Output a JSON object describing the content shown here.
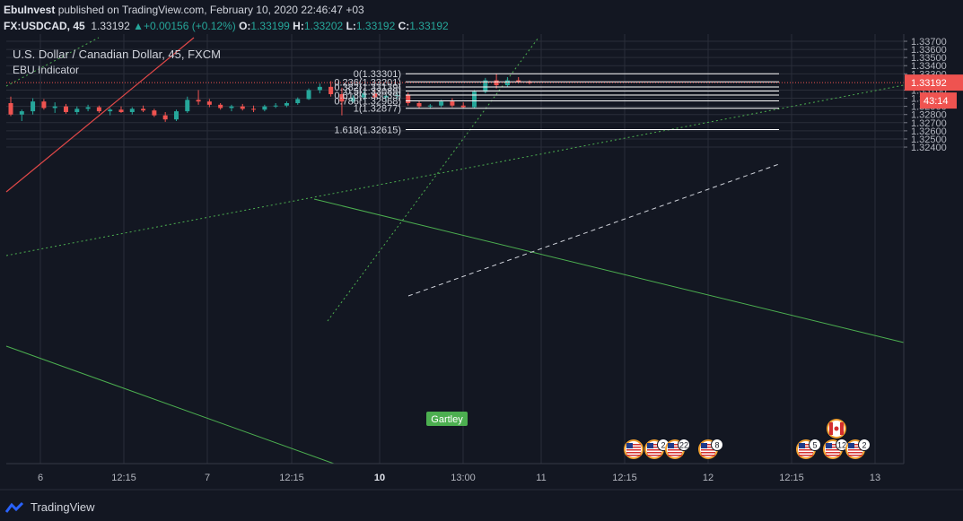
{
  "header": {
    "author": "EbuInvest",
    "published_text": "published on TradingView.com, February 10, 2020 22:46:47 +03",
    "symbol": "FX:USDCAD, 45",
    "price": "1.33192",
    "change": "+0.00156 (+0.12%)",
    "open_label": "O:",
    "open": "1.33199",
    "high_label": "H:",
    "high": "1.33202",
    "low_label": "L:",
    "low": "1.33192",
    "close_label": "C:",
    "close": "1.33192"
  },
  "legend": {
    "title": "U.S. Dollar / Canadian Dollar, 45, FXCM",
    "indicator": "EBU Indicator"
  },
  "price_axis": {
    "ticks": [
      "1.33700",
      "1.33600",
      "1.33500",
      "1.33400",
      "1.33300",
      "1.33100",
      "1.33000",
      "1.32900",
      "1.32800",
      "1.32700",
      "1.32600",
      "1.32500",
      "1.32400"
    ],
    "current_price": "1.33192",
    "countdown": "43:14"
  },
  "time_axis": {
    "ticks": [
      "6",
      "12:15",
      "7",
      "12:15",
      "10",
      "13:00",
      "11",
      "12:15",
      "12",
      "12:15",
      "13"
    ],
    "bold_tick": "10"
  },
  "fib_levels": [
    {
      "label": "0(1.33301)",
      "price": 1.33301
    },
    {
      "label": "0.236(1.33201)",
      "price": 1.33201
    },
    {
      "label": "0.382(1.33139)",
      "price": 1.33139
    },
    {
      "label": "0.5(1.33089)",
      "price": 1.33089
    },
    {
      "label": "0.618(1.33039)",
      "price": 1.33039
    },
    {
      "label": "0.786(1.32968)",
      "price": 1.32968
    },
    {
      "label": "1(1.32877)",
      "price": 1.32877
    },
    {
      "label": "1.618(1.32615)",
      "price": 1.32615
    }
  ],
  "pattern_label": "Gartley",
  "events": [
    {
      "flag": "US",
      "count": ""
    },
    {
      "flag": "US",
      "count": "2"
    },
    {
      "flag": "US",
      "count": "22"
    },
    {
      "flag": "US",
      "count": "8"
    },
    {
      "flag": "US",
      "count": "5"
    },
    {
      "flag": "US",
      "count": "12"
    },
    {
      "flag": "US",
      "count": "2"
    },
    {
      "flag": "CA",
      "count": ""
    }
  ],
  "footer": {
    "brand": "TradingView"
  },
  "colors": {
    "background": "#131722",
    "up": "#26a69a",
    "down": "#ef5350",
    "grid": "#2a2e39",
    "price_line": "#ef5350",
    "trend_green": "#4caf50",
    "trend_red": "#e04848"
  },
  "chart_data": {
    "type": "candlestick",
    "symbol": "USDCAD",
    "timeframe": "45",
    "ylim": [
      1.3232,
      1.3372
    ],
    "candles": [
      [
        1.3294,
        1.3302,
        1.3278,
        1.328
      ],
      [
        1.328,
        1.3286,
        1.3272,
        1.3284
      ],
      [
        1.3284,
        1.33,
        1.328,
        1.3296
      ],
      [
        1.3296,
        1.3299,
        1.3286,
        1.3288
      ],
      [
        1.3288,
        1.3295,
        1.3282,
        1.329
      ],
      [
        1.329,
        1.3293,
        1.3281,
        1.3283
      ],
      [
        1.3283,
        1.329,
        1.328,
        1.3287
      ],
      [
        1.3287,
        1.3292,
        1.3284,
        1.3289
      ],
      [
        1.3289,
        1.3291,
        1.3282,
        1.3284
      ],
      [
        1.3284,
        1.3288,
        1.3279,
        1.3286
      ],
      [
        1.3286,
        1.329,
        1.3282,
        1.3283
      ],
      [
        1.3283,
        1.3289,
        1.328,
        1.3287
      ],
      [
        1.3287,
        1.3291,
        1.3283,
        1.3285
      ],
      [
        1.3285,
        1.3287,
        1.3277,
        1.3279
      ],
      [
        1.3279,
        1.3283,
        1.3271,
        1.3274
      ],
      [
        1.3274,
        1.3286,
        1.3272,
        1.3284
      ],
      [
        1.3284,
        1.3302,
        1.3282,
        1.3298
      ],
      [
        1.3298,
        1.331,
        1.3292,
        1.3296
      ],
      [
        1.3296,
        1.3299,
        1.3289,
        1.3292
      ],
      [
        1.3292,
        1.3294,
        1.3286,
        1.3288
      ],
      [
        1.3288,
        1.3292,
        1.3284,
        1.329
      ],
      [
        1.329,
        1.3293,
        1.3285,
        1.3287
      ],
      [
        1.3287,
        1.3291,
        1.3283,
        1.3286
      ],
      [
        1.3286,
        1.3292,
        1.3284,
        1.329
      ],
      [
        1.329,
        1.3294,
        1.3288,
        1.3291
      ],
      [
        1.3291,
        1.3296,
        1.3289,
        1.3294
      ],
      [
        1.3294,
        1.3301,
        1.3292,
        1.3299
      ],
      [
        1.3299,
        1.3312,
        1.3298,
        1.331
      ],
      [
        1.331,
        1.3318,
        1.3306,
        1.3314
      ],
      [
        1.3314,
        1.3321,
        1.3302,
        1.3305
      ],
      [
        1.3305,
        1.3313,
        1.3279,
        1.3296
      ],
      [
        1.3296,
        1.3304,
        1.3294,
        1.3301
      ],
      [
        1.3301,
        1.3309,
        1.3298,
        1.3306
      ],
      [
        1.3306,
        1.331,
        1.3299,
        1.3301
      ],
      [
        1.3301,
        1.3306,
        1.3296,
        1.3303
      ],
      [
        1.3303,
        1.3308,
        1.3299,
        1.3304
      ],
      [
        1.3304,
        1.3307,
        1.3291,
        1.3294
      ],
      [
        1.3294,
        1.3297,
        1.3288,
        1.329
      ],
      [
        1.329,
        1.3293,
        1.3287,
        1.3291
      ],
      [
        1.3291,
        1.3298,
        1.3289,
        1.3296
      ],
      [
        1.3296,
        1.33,
        1.3289,
        1.3291
      ],
      [
        1.3291,
        1.3295,
        1.3288,
        1.3289
      ],
      [
        1.3289,
        1.331,
        1.3288,
        1.3308
      ],
      [
        1.3308,
        1.3325,
        1.3306,
        1.3322
      ],
      [
        1.3322,
        1.333,
        1.3312,
        1.3316
      ],
      [
        1.3316,
        1.3326,
        1.3314,
        1.3322
      ],
      [
        1.3322,
        1.3326,
        1.3318,
        1.332
      ],
      [
        1.332,
        1.3322,
        1.3317,
        1.3319
      ]
    ]
  }
}
